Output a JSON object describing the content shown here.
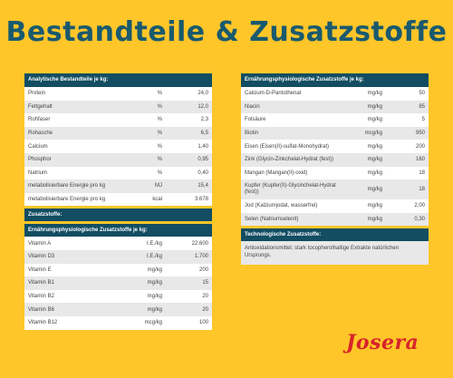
{
  "title": "Bestandteile & Zusatzstoffe",
  "analytical": {
    "header": "Analytische Bestandteile je kg:",
    "rows": [
      {
        "name": "Protein",
        "unit": "%",
        "value": "24,0"
      },
      {
        "name": "Fettgehalt",
        "unit": "%",
        "value": "12,0"
      },
      {
        "name": "Rohfaser",
        "unit": "%",
        "value": "2,3"
      },
      {
        "name": "Rohasche",
        "unit": "%",
        "value": "6,5"
      },
      {
        "name": "Calcium",
        "unit": "%",
        "value": "1,40"
      },
      {
        "name": "Phosphor",
        "unit": "%",
        "value": "0,95"
      },
      {
        "name": "Natrium",
        "unit": "%",
        "value": "0,40"
      },
      {
        "name": "metabolisierbare Energie pro kg",
        "unit": "MJ",
        "value": "15,4"
      },
      {
        "name": "metabolisierbare Energie pro kg",
        "unit": "kcal",
        "value": "3.678"
      }
    ]
  },
  "additives": {
    "header": "Zusatzstoffe:",
    "subheader": "Ernährungsphysiologische Zusatzstoffe je kg:",
    "rows": [
      {
        "name": "Vitamin A",
        "unit": "I.E./kg",
        "value": "22.600"
      },
      {
        "name": "Vitamin D3",
        "unit": "I.E./kg",
        "value": "1.700"
      },
      {
        "name": "Vitamin E",
        "unit": "mg/kg",
        "value": "200"
      },
      {
        "name": "Vitamin B1",
        "unit": "mg/kg",
        "value": "15"
      },
      {
        "name": "Vitamin B2",
        "unit": "mg/kg",
        "value": "20"
      },
      {
        "name": "Vitamin B6",
        "unit": "mg/kg",
        "value": "20"
      },
      {
        "name": "Vitamin B12",
        "unit": "mcg/kg",
        "value": "100"
      }
    ]
  },
  "nutritional": {
    "header": "Ernährungsphysiologische Zusatzstoffe je kg:",
    "rows": [
      {
        "name": "Calcium-D-Pantothenat",
        "unit": "mg/kg",
        "value": "50"
      },
      {
        "name": "Niacin",
        "unit": "mg/kg",
        "value": "85"
      },
      {
        "name": "Folsäure",
        "unit": "mg/kg",
        "value": "5"
      },
      {
        "name": "Biotin",
        "unit": "mcg/kg",
        "value": "950"
      },
      {
        "name": "Eisen (Eisen(II)-sulfat-Monohydrat)",
        "unit": "mg/kg",
        "value": "200"
      },
      {
        "name": "Zink (Glycin-Zinkchelat-Hydrat (fest))",
        "unit": "mg/kg",
        "value": "160"
      },
      {
        "name": "Mangan (Mangan(II)-oxid)",
        "unit": "mg/kg",
        "value": "18"
      },
      {
        "name": "Kupfer (Kupfer(II)-Glycinchelat-Hydrat (fest))",
        "unit": "mg/kg",
        "value": "18"
      },
      {
        "name": "Jod (Kalziumjodat, wasserfrei)",
        "unit": "mg/kg",
        "value": "2,00"
      },
      {
        "name": "Selen (Natriumselenit)",
        "unit": "mg/kg",
        "value": "0,30"
      }
    ]
  },
  "technological": {
    "header": "Technologische Zusatzstoffe:",
    "text": "Antioxidationsmittel: stark tocopherolhaltige Extrakte natürlichen Ursprungs."
  },
  "logo": "Josera",
  "colors": {
    "background": "#FFC629",
    "header": "#124D62",
    "title": "#1A5A6E",
    "logo": "#D8232A"
  }
}
